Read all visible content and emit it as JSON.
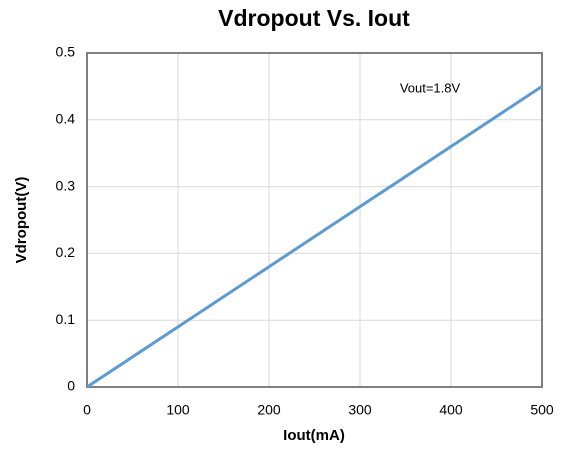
{
  "chart_data": {
    "type": "line",
    "title": "Vdropout Vs. Iout",
    "x_label": "Iout(mA)",
    "y_label": "Vdropout(V)",
    "annotation": "Vout=1.8V",
    "x": [
      0,
      100,
      200,
      300,
      400,
      500
    ],
    "series": [
      {
        "name": "Vout=1.8V",
        "color": "#5b9bd5",
        "values": [
          0,
          0.09,
          0.18,
          0.27,
          0.36,
          0.45
        ]
      }
    ],
    "xlim": [
      0,
      500
    ],
    "xticks": [
      0,
      100,
      200,
      300,
      400,
      500
    ],
    "ylim": [
      0,
      0.5
    ],
    "yticks": [
      0,
      0.1,
      0.2,
      0.3,
      0.4,
      0.5
    ],
    "grid": true
  }
}
